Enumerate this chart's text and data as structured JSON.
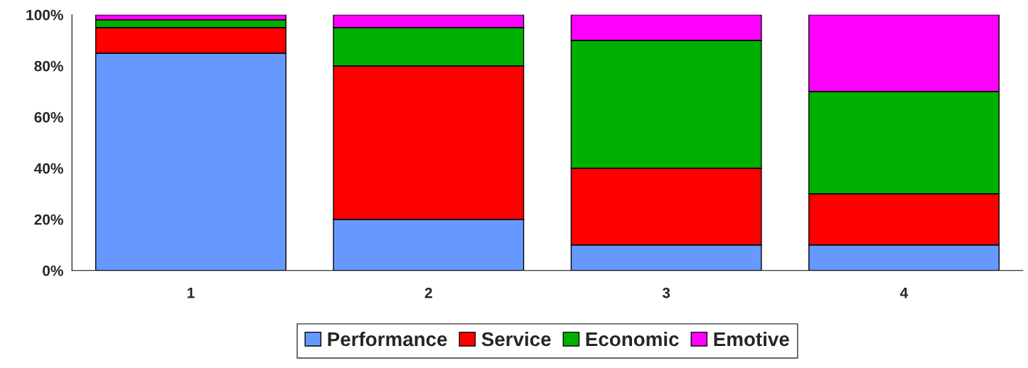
{
  "chart_data": {
    "type": "bar",
    "stacked": true,
    "categories": [
      "1",
      "2",
      "3",
      "4"
    ],
    "series": [
      {
        "name": "Performance",
        "color": "#6699ff",
        "values": [
          85,
          20,
          10,
          10
        ]
      },
      {
        "name": "Service",
        "color": "#ff0000",
        "values": [
          10,
          60,
          30,
          20
        ]
      },
      {
        "name": "Economic",
        "color": "#00b000",
        "values": [
          3,
          15,
          50,
          40
        ]
      },
      {
        "name": "Emotive",
        "color": "#ff00ff",
        "values": [
          2,
          5,
          10,
          30
        ]
      }
    ],
    "ylim": [
      0,
      100
    ],
    "yticks": [
      {
        "value": 0,
        "label": "0%"
      },
      {
        "value": 20,
        "label": "20%"
      },
      {
        "value": 40,
        "label": "40%"
      },
      {
        "value": 60,
        "label": "60%"
      },
      {
        "value": 80,
        "label": "80%"
      },
      {
        "value": 100,
        "label": "100%"
      }
    ],
    "grid": false,
    "legend": "bottom"
  }
}
